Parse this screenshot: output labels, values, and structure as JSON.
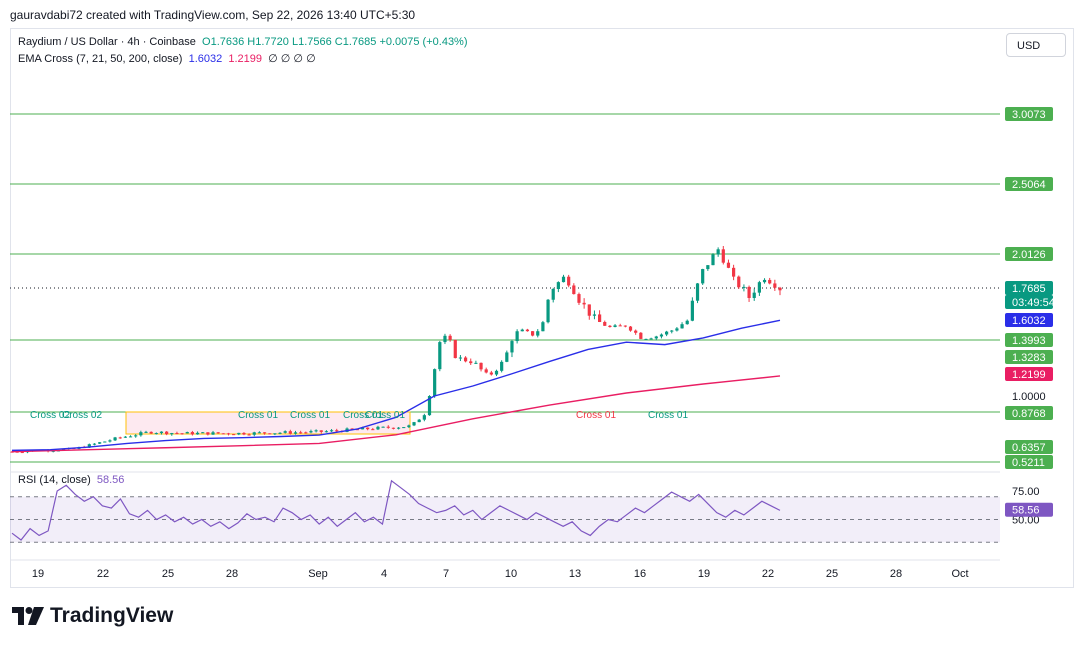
{
  "header": {
    "attribution": "gauravdabi72 created with TradingView.com, Sep 22, 2026 13:40 UTC+5:30"
  },
  "legend": {
    "symbol": "Raydium / US Dollar · 4h · Coinbase",
    "o": "O1.7636",
    "h": "H1.7720",
    "l": "L1.7566",
    "c": "C1.7685",
    "change": "+0.0075 (+0.43%)",
    "ema_label": "EMA Cross (7, 21, 50, 200, close)",
    "ema_a": "1.6032",
    "ema_b": "1.2199",
    "ema_rest": "∅ ∅ ∅ ∅"
  },
  "currency_button": "USD",
  "rsi_legend": {
    "label": "RSI (14, close)",
    "value": "58.56"
  },
  "brand": "TradingView",
  "colors": {
    "up": "#089981",
    "down": "#f23645",
    "ema_fast": "#2a2ee8",
    "ema_slow": "#e91e63",
    "level": "#4caf50",
    "rsi": "#7e57c2"
  },
  "chart_data": {
    "type": "candlestick",
    "price_axis_labels": [
      "3.0073",
      "2.5064",
      "2.0126",
      "1.7685",
      "03:49:54",
      "1.6032",
      "1.3993",
      "1.3283",
      "1.2199",
      "1.0000",
      "0.8768",
      "0.6357",
      "0.5211"
    ],
    "current_price": 1.7685,
    "countdown": "03:49:54",
    "horizontal_levels": [
      3.0073,
      2.5064,
      2.0126,
      1.3993,
      0.8768,
      0.5211
    ],
    "ema_values": {
      "fast": 1.6032,
      "slow": 1.2199
    },
    "x_tick_labels": [
      "19",
      "22",
      "25",
      "28",
      "Sep",
      "4",
      "7",
      "10",
      "13",
      "16",
      "19",
      "22",
      "25",
      "28",
      "Oct"
    ],
    "annotations": [
      "Cross 02",
      "Cross 02",
      "Cross 01",
      "Cross 01",
      "Cross 01",
      "Cross 01",
      "Cross 01",
      "Cross 01"
    ],
    "ema_fast": [
      [
        0,
        0.61
      ],
      [
        5,
        0.615
      ],
      [
        10,
        0.635
      ],
      [
        15,
        0.66
      ],
      [
        20,
        0.68
      ],
      [
        25,
        0.695
      ],
      [
        30,
        0.7
      ],
      [
        35,
        0.708
      ],
      [
        40,
        0.718
      ],
      [
        45,
        0.76
      ],
      [
        50,
        0.84
      ],
      [
        55,
        1.0
      ],
      [
        60,
        1.1
      ],
      [
        65,
        1.22
      ],
      [
        70,
        1.3
      ],
      [
        75,
        1.36
      ],
      [
        80,
        1.39
      ],
      [
        85,
        1.38
      ],
      [
        90,
        1.42
      ],
      [
        95,
        1.52
      ],
      [
        100,
        1.6
      ]
    ],
    "ema_slow": [
      [
        0,
        0.6
      ],
      [
        10,
        0.615
      ],
      [
        20,
        0.63
      ],
      [
        30,
        0.645
      ],
      [
        40,
        0.66
      ],
      [
        50,
        0.72
      ],
      [
        60,
        0.83
      ],
      [
        70,
        0.93
      ],
      [
        80,
        1.03
      ],
      [
        90,
        1.12
      ],
      [
        100,
        1.2
      ]
    ],
    "rsi": {
      "label": "RSI (14, close)",
      "value": 58.56,
      "levels": [
        70,
        50,
        30
      ],
      "axis_labels": [
        "75.00",
        "50.00"
      ],
      "values": [
        38,
        32,
        42,
        36,
        40,
        75,
        80,
        72,
        66,
        70,
        62,
        60,
        68,
        55,
        52,
        58,
        50,
        54,
        48,
        52,
        46,
        50,
        44,
        48,
        42,
        47,
        55,
        50,
        52,
        48,
        60,
        56,
        50,
        54,
        46,
        52,
        44,
        50,
        56,
        48,
        52,
        46,
        84,
        78,
        72,
        64,
        60,
        56,
        58,
        62,
        54,
        58,
        50,
        56,
        62,
        58,
        54,
        50,
        56,
        52,
        48,
        44,
        48,
        40,
        36,
        44,
        50,
        48,
        54,
        60,
        56,
        62,
        68,
        74,
        70,
        66,
        72,
        64,
        56,
        52,
        58,
        54,
        60,
        66,
        62,
        58
      ]
    }
  }
}
